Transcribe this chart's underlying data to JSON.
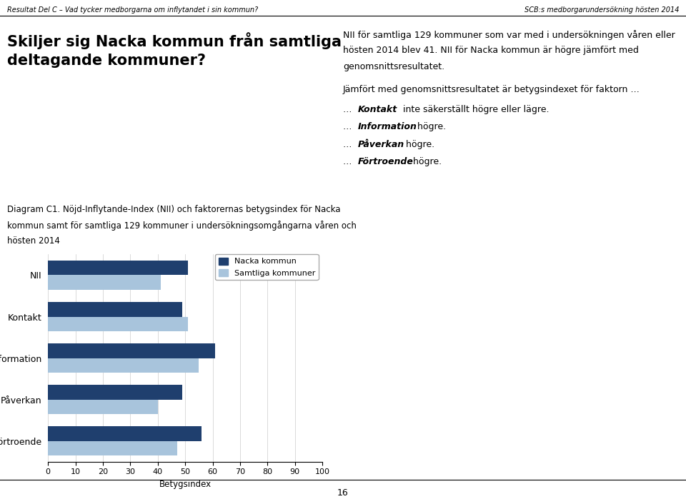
{
  "header_left": "Resultat Del C – Vad tycker medborgarna om inflytandet i sin kommun?",
  "header_right": "SCB:s medborgarundersökning hösten 2014",
  "main_title": "Skiljer sig Nacka kommun från samtliga\ndeltagande kommuner?",
  "diagram_caption_line1": "Diagram C1. Nöjd-Inflytande-Index (NII) och faktorernas betygsindex för Nacka",
  "diagram_caption_line2": "kommun samt för samtliga 129 kommuner i undersökningsomgångarna våren och",
  "diagram_caption_line3": "hösten 2014",
  "right_text_para1_line1": "NII för samtliga 129 kommuner som var med i undersökningen våren eller",
  "right_text_para1_line2": "hösten 2014 blev 41. NII för Nacka kommun är högre jämfört med",
  "right_text_para1_line3": "genomsnittsresultatet.",
  "right_text_para2": "Jämfört med genomsnittsresultatet är betygsindexet för faktorn …",
  "right_kontakt_prefix": "… ",
  "right_kontakt_bold": "Kontakt",
  "right_kontakt_suffix": " inte säkerställt högre eller lägre.",
  "right_info_prefix": "… ",
  "right_info_bold": "Information",
  "right_info_suffix": " högre.",
  "right_paverkan_prefix": "… ",
  "right_paverkan_bold": "Påverkan",
  "right_paverkan_suffix": " högre.",
  "right_fortroende_prefix": "… ",
  "right_fortroende_bold": "Förtroende",
  "right_fortroende_suffix": " högre.",
  "categories": [
    "NII",
    "Kontakt",
    "Information",
    "Påverkan",
    "Förtroende"
  ],
  "nacka_values": [
    51,
    49,
    61,
    49,
    56
  ],
  "samtliga_values": [
    41,
    51,
    55,
    40,
    47
  ],
  "nacka_color": "#1F3F6E",
  "samtliga_color": "#A8C4DC",
  "legend_nacka": "Nacka kommun",
  "legend_samtliga": "Samtliga kommuner",
  "xlabel": "Betygsindex",
  "xlim": [
    0,
    100
  ],
  "xticks": [
    0,
    10,
    20,
    30,
    40,
    50,
    60,
    70,
    80,
    90,
    100
  ],
  "bar_height": 0.35,
  "page_number": "16",
  "figsize": [
    9.6,
    6.99
  ],
  "dpi": 100
}
